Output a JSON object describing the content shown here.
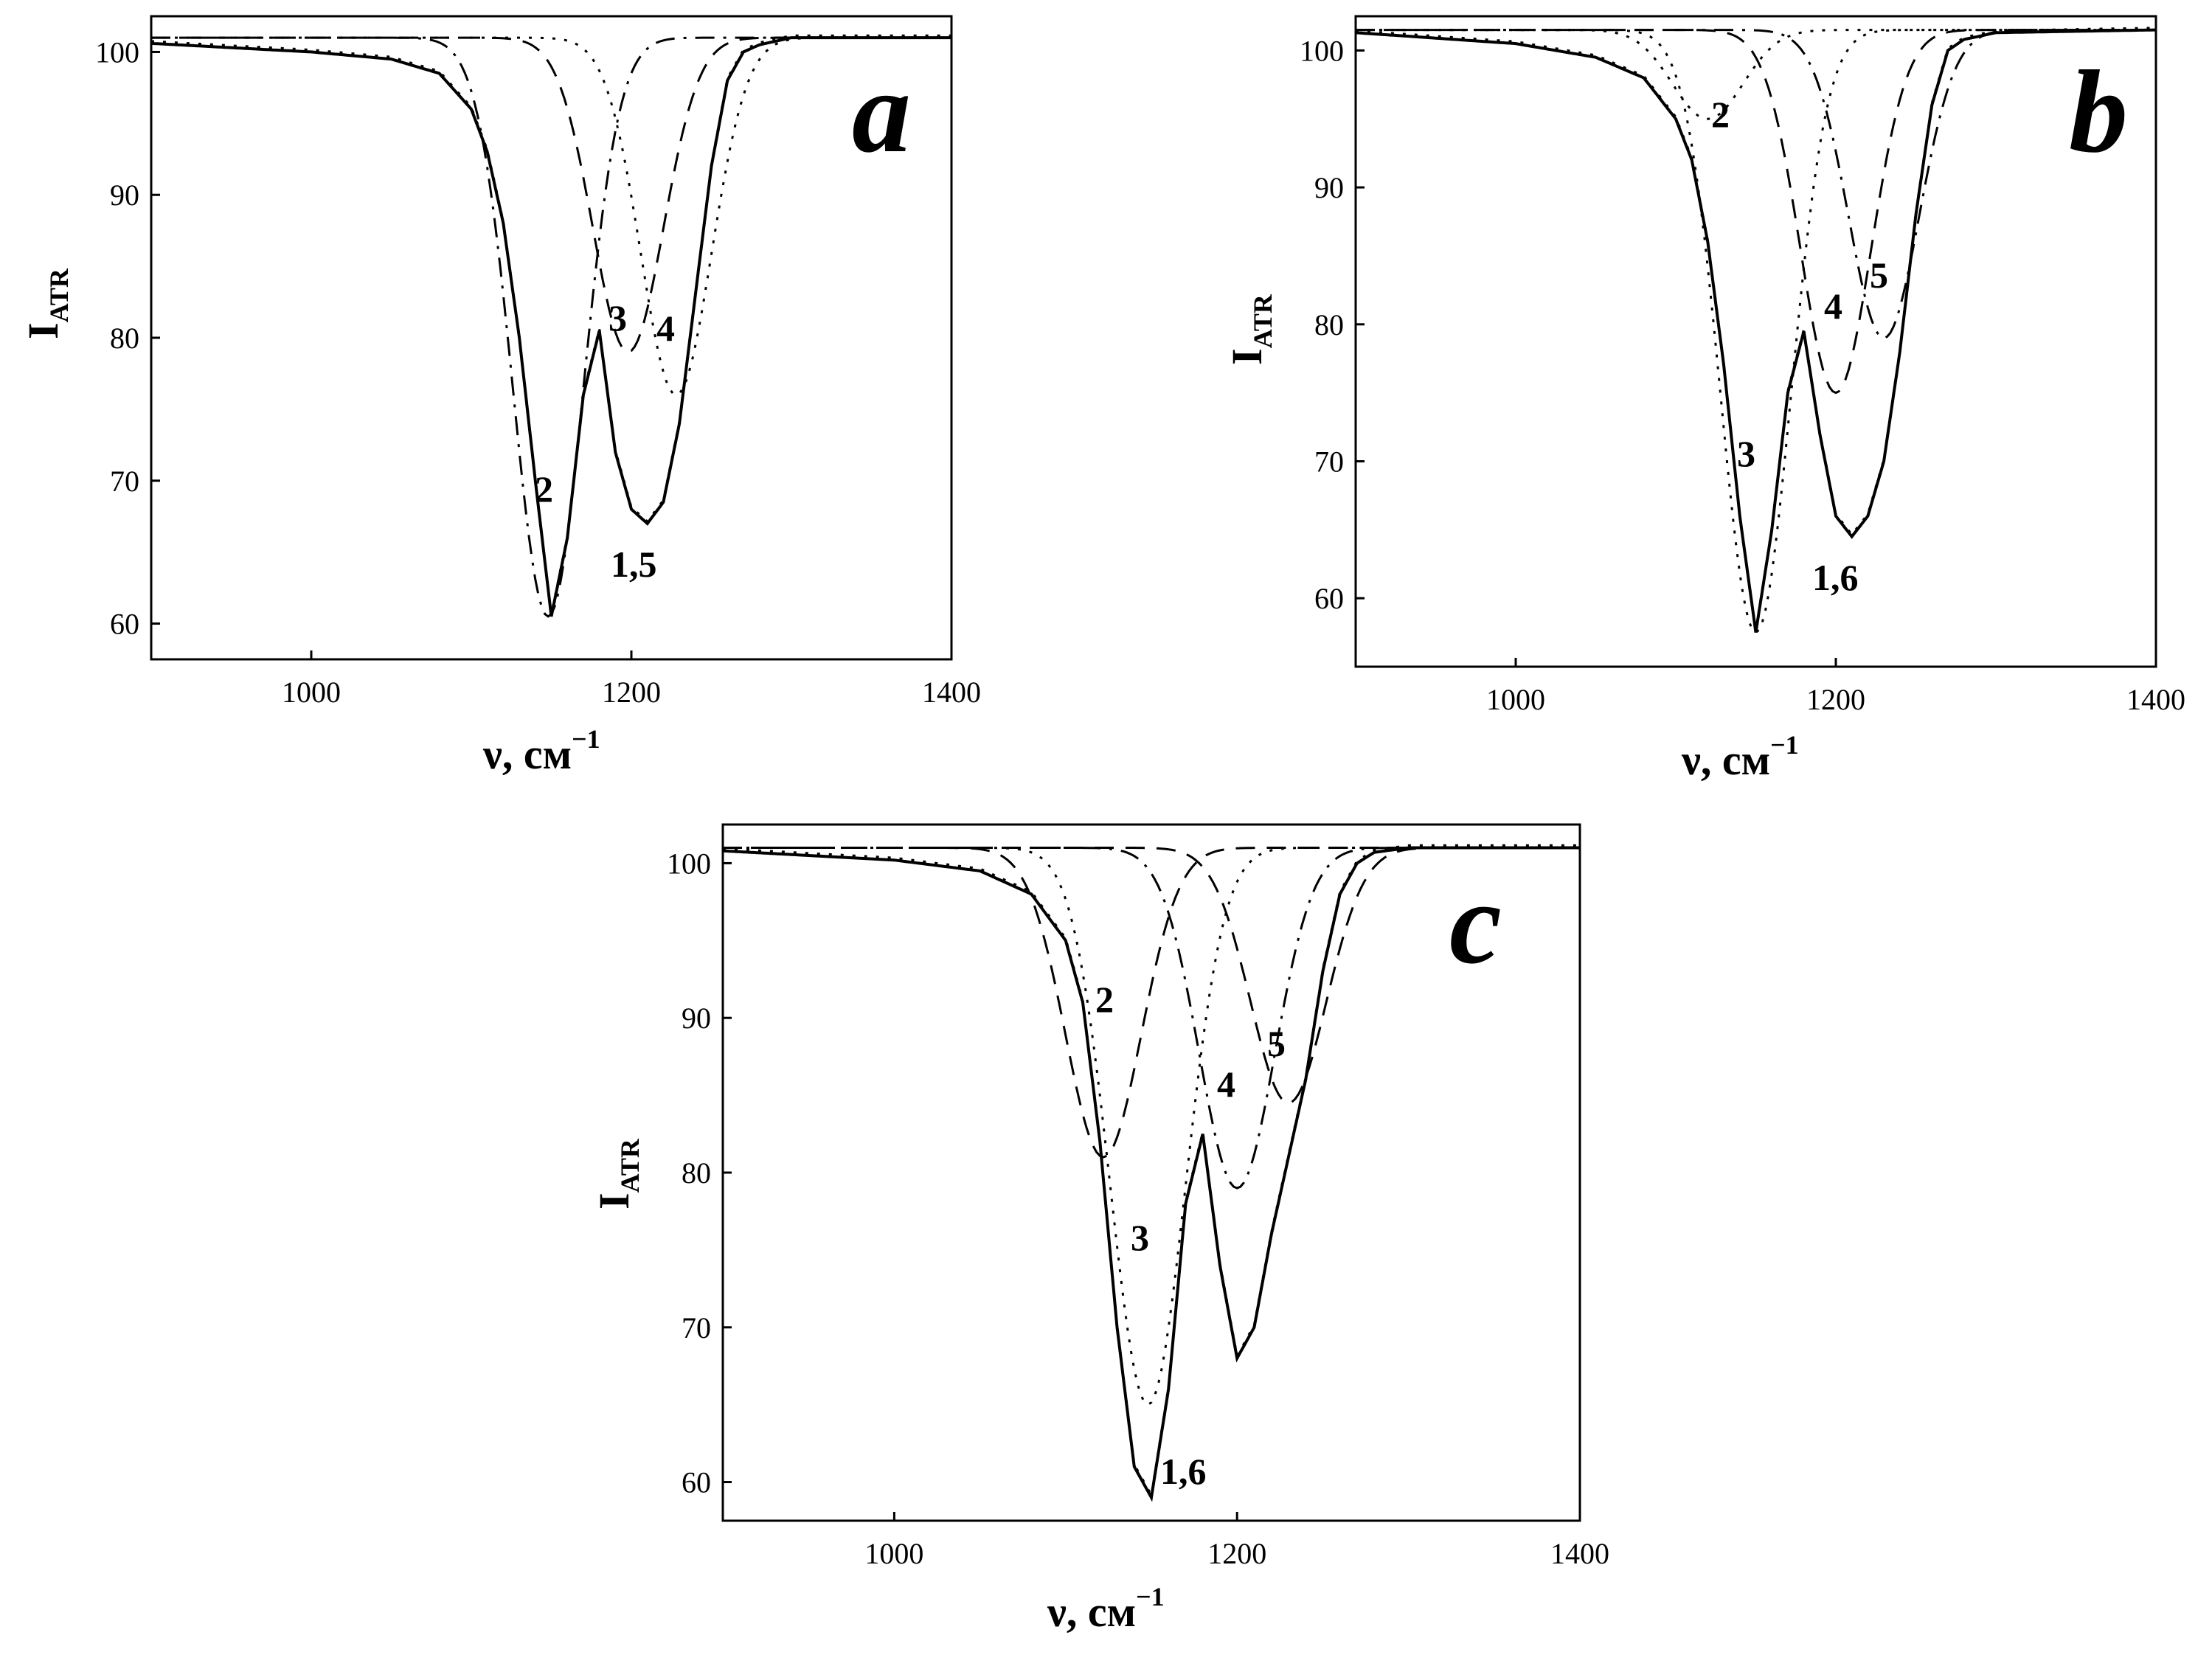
{
  "chart_data": [
    {
      "type": "line",
      "panel": "a",
      "x_label": "ν, см",
      "x_label_sup": "−1",
      "y_label": "I",
      "y_label_sub": "ATR",
      "xlim": [
        900,
        1400
      ],
      "ylim": [
        57.5,
        102.5
      ],
      "x_ticks": [
        1000,
        1200,
        1400
      ],
      "y_ticks": [
        60,
        70,
        80,
        90,
        100
      ],
      "baseline": 101,
      "series": [
        {
          "name": "1",
          "style": "solid",
          "values": {
            "x": [
              900,
              1000,
              1050,
              1080,
              1100,
              1110,
              1120,
              1130,
              1140,
              1150,
              1160,
              1170,
              1180,
              1190,
              1200,
              1210,
              1220,
              1230,
              1240,
              1250,
              1260,
              1270,
              1280,
              1300,
              1400
            ],
            "y": [
              100.6,
              100,
              99.5,
              98.5,
              96,
              93,
              88,
              80,
              70,
              60.5,
              66,
              76,
              80.5,
              72,
              68,
              67,
              68.5,
              74,
              83,
              92,
              98,
              100,
              100.5,
              101,
              101
            ]
          }
        },
        {
          "name": "2",
          "style": "dash-dot",
          "peak_x": 1148,
          "peak_y": 60.5
        },
        {
          "name": "3",
          "style": "dashed",
          "peak_x": 1198,
          "peak_y": 79
        },
        {
          "name": "4",
          "style": "dotted",
          "peak_x": 1228,
          "peak_y": 76
        },
        {
          "name": "5",
          "style": "dotted",
          "note": "sum of components, coincides with 1"
        }
      ],
      "annotations": [
        "2",
        "3",
        "4",
        "1,5"
      ]
    },
    {
      "type": "line",
      "panel": "b",
      "x_label": "ν, см",
      "x_label_sup": "−1",
      "y_label": "I",
      "y_label_sub": "ATR",
      "xlim": [
        900,
        1400
      ],
      "ylim": [
        55,
        102.5
      ],
      "x_ticks": [
        1000,
        1200,
        1400
      ],
      "y_ticks": [
        60,
        70,
        80,
        90,
        100
      ],
      "baseline": 101.5,
      "series": [
        {
          "name": "1",
          "style": "solid",
          "values": {
            "x": [
              900,
              1000,
              1050,
              1080,
              1100,
              1110,
              1120,
              1130,
              1140,
              1150,
              1160,
              1170,
              1180,
              1190,
              1200,
              1210,
              1220,
              1230,
              1240,
              1250,
              1260,
              1270,
              1280,
              1300,
              1400
            ],
            "y": [
              101.3,
              100.5,
              99.5,
              98,
              95,
              92,
              86,
              77,
              66,
              57.5,
              65,
              75,
              79.5,
              72,
              66,
              64.5,
              66,
              70,
              78,
              88,
              96,
              100,
              100.8,
              101.3,
              101.5
            ]
          }
        },
        {
          "name": "2",
          "style": "dotted",
          "peak_x": 1120,
          "peak_y": 95
        },
        {
          "name": "3",
          "style": "dotted",
          "peak_x": 1150,
          "peak_y": 57.5
        },
        {
          "name": "4",
          "style": "dashed",
          "peak_x": 1200,
          "peak_y": 75
        },
        {
          "name": "5",
          "style": "dash-dot",
          "peak_x": 1230,
          "peak_y": 79
        },
        {
          "name": "6",
          "style": "dotted",
          "note": "sum of components, coincides with 1"
        }
      ],
      "annotations": [
        "2",
        "3",
        "4",
        "5",
        "1,6"
      ]
    },
    {
      "type": "line",
      "panel": "c",
      "x_label": "ν, см",
      "x_label_sup": "−1",
      "y_label": "I",
      "y_label_sub": "ATR",
      "xlim": [
        900,
        1400
      ],
      "ylim": [
        57.5,
        102.5
      ],
      "x_ticks": [
        1000,
        1200,
        1400
      ],
      "y_ticks": [
        60,
        70,
        80,
        90,
        100
      ],
      "baseline": 101,
      "series": [
        {
          "name": "1",
          "style": "solid",
          "values": {
            "x": [
              900,
              1000,
              1050,
              1080,
              1100,
              1110,
              1120,
              1130,
              1140,
              1150,
              1160,
              1170,
              1180,
              1190,
              1200,
              1210,
              1220,
              1230,
              1240,
              1250,
              1260,
              1270,
              1280,
              1300,
              1400
            ],
            "y": [
              100.8,
              100.2,
              99.5,
              98,
              95,
              91,
              82,
              70,
              61,
              59,
              66,
              78,
              82.5,
              74,
              68,
              70,
              76,
              81,
              86,
              93,
              98,
              100,
              100.7,
              101,
              101
            ]
          }
        },
        {
          "name": "2",
          "style": "dashed",
          "peak_x": 1122,
          "peak_y": 81
        },
        {
          "name": "3",
          "style": "dotted",
          "peak_x": 1148,
          "peak_y": 65
        },
        {
          "name": "4",
          "style": "dash-dot",
          "peak_x": 1200,
          "peak_y": 79
        },
        {
          "name": "5",
          "style": "dashed",
          "peak_x": 1230,
          "peak_y": 84.5
        },
        {
          "name": "6",
          "style": "dotted",
          "note": "sum of components, coincides with 1"
        }
      ],
      "annotations": [
        "2",
        "3",
        "4",
        "5",
        "1,6"
      ]
    }
  ]
}
